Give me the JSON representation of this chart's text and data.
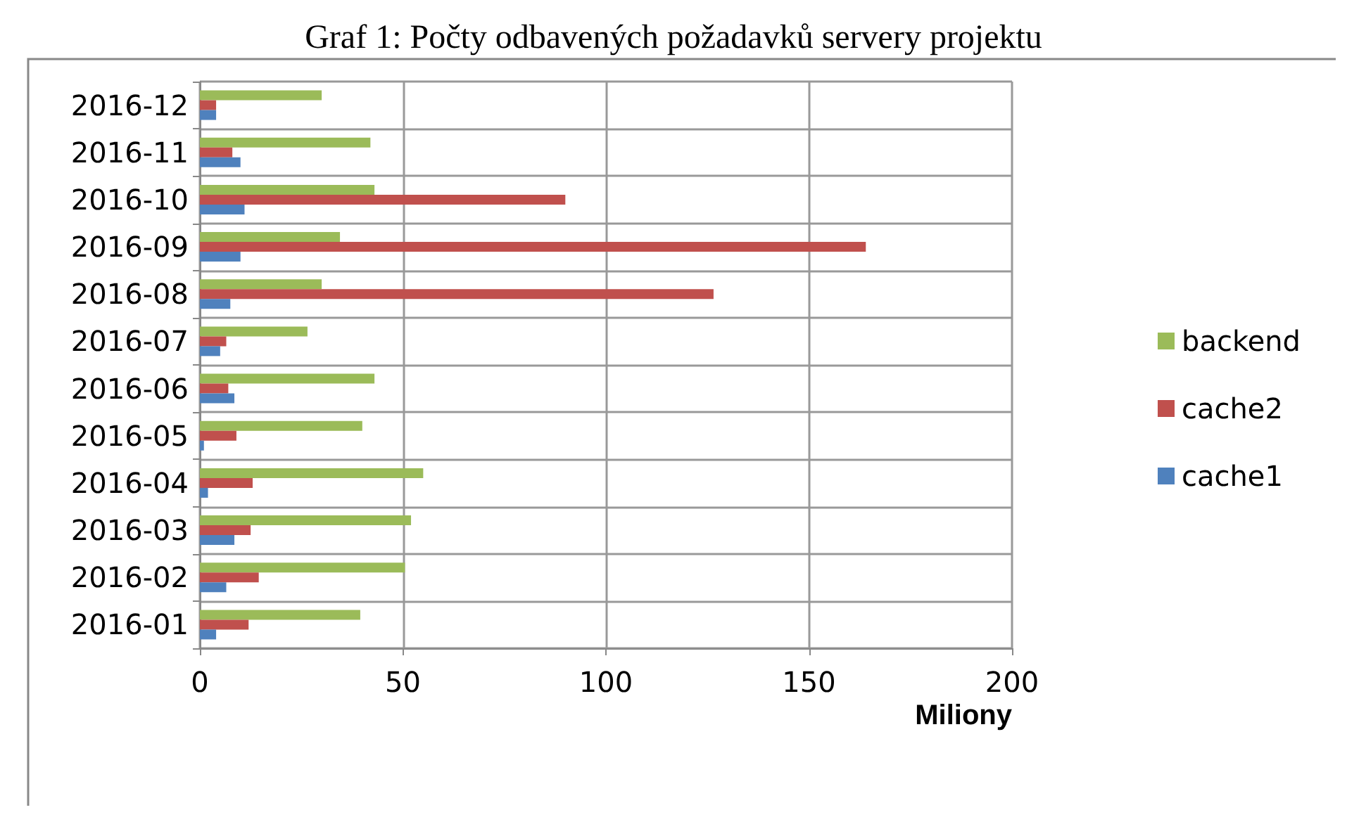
{
  "chart_data": {
    "type": "bar",
    "orientation": "horizontal",
    "title": "Graf 1: Počty odbavených požadavků servery projektu",
    "xlabel": "Miliony",
    "categories": [
      "2016-12",
      "2016-11",
      "2016-10",
      "2016-09",
      "2016-08",
      "2016-07",
      "2016-06",
      "2016-05",
      "2016-04",
      "2016-03",
      "2016-02",
      "2016-01"
    ],
    "series": [
      {
        "name": "backend",
        "color": "#9bbb59",
        "values": [
          30,
          42,
          43,
          34.5,
          30,
          26.5,
          43,
          40,
          55,
          52,
          50.5,
          39.5
        ]
      },
      {
        "name": "cache2",
        "color": "#c0504d",
        "values": [
          4,
          8,
          90,
          164,
          126.5,
          6.5,
          7,
          9,
          13,
          12.5,
          14.5,
          12
        ]
      },
      {
        "name": "cache1",
        "color": "#4f81bd",
        "values": [
          4,
          10,
          11,
          10,
          7.5,
          5,
          8.5,
          1,
          2,
          8.5,
          6.5,
          4
        ]
      }
    ],
    "xlim": [
      0,
      200
    ],
    "xticks": [
      0,
      50,
      100,
      150,
      200
    ],
    "grid": true,
    "legend": "right"
  }
}
